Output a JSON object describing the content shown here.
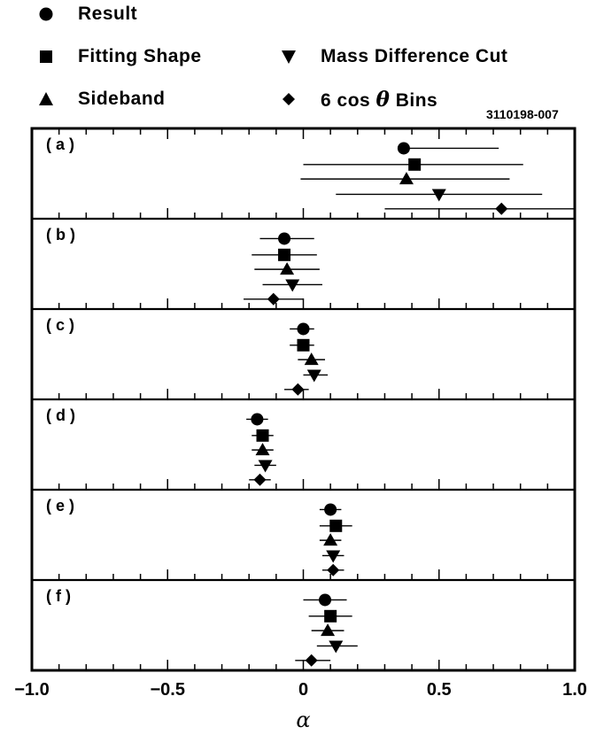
{
  "legend": {
    "items": [
      {
        "key": "result",
        "label": "Result",
        "symbol": "circle-icon"
      },
      {
        "key": "fitting",
        "label": "Fitting  Shape",
        "symbol": "square-icon"
      },
      {
        "key": "sideband",
        "label": "Sideband",
        "symbol": "triangle-up-icon"
      },
      {
        "key": "mass",
        "label": "Mass  Difference  Cut",
        "symbol": "triangle-down-icon"
      },
      {
        "key": "cos",
        "label": "6  cos",
        "label_theta": "θ",
        "label_after": " Bins",
        "symbol": "diamond-icon"
      }
    ]
  },
  "figure_code": "3110198-007",
  "chart_data": {
    "type": "scatter",
    "xlabel": "α",
    "xlim": [
      -1.0,
      1.0
    ],
    "x_tick_labels": [
      "−1.0",
      "−0.5",
      "0",
      "0.5",
      "1.0"
    ],
    "x_ticks": [
      -1.0,
      -0.5,
      0,
      0.5,
      1.0
    ],
    "series_order": [
      "result",
      "fitting",
      "sideband",
      "mass",
      "cos"
    ],
    "panels": [
      {
        "label": "( a )",
        "points": [
          {
            "series": "result",
            "x": 0.37,
            "xerr_low": 0.35,
            "xerr_high": 0.72
          },
          {
            "series": "fitting",
            "x": 0.41,
            "xerr_low": 0.0,
            "xerr_high": 0.81
          },
          {
            "series": "sideband",
            "x": 0.38,
            "xerr_low": -0.01,
            "xerr_high": 0.76
          },
          {
            "series": "mass",
            "x": 0.5,
            "xerr_low": 0.12,
            "xerr_high": 0.88
          },
          {
            "series": "cos",
            "x": 0.73,
            "xerr_low": 0.3,
            "xerr_high": 1.0
          }
        ]
      },
      {
        "label": "( b )",
        "points": [
          {
            "series": "result",
            "x": -0.07,
            "xerr_low": -0.16,
            "xerr_high": 0.04
          },
          {
            "series": "fitting",
            "x": -0.07,
            "xerr_low": -0.19,
            "xerr_high": 0.05
          },
          {
            "series": "sideband",
            "x": -0.06,
            "xerr_low": -0.18,
            "xerr_high": 0.06
          },
          {
            "series": "mass",
            "x": -0.04,
            "xerr_low": -0.15,
            "xerr_high": 0.07
          },
          {
            "series": "cos",
            "x": -0.11,
            "xerr_low": -0.22,
            "xerr_high": 0.0
          }
        ]
      },
      {
        "label": "( c )",
        "points": [
          {
            "series": "result",
            "x": 0.0,
            "xerr_low": -0.05,
            "xerr_high": 0.04
          },
          {
            "series": "fitting",
            "x": 0.0,
            "xerr_low": -0.05,
            "xerr_high": 0.04
          },
          {
            "series": "sideband",
            "x": 0.03,
            "xerr_low": -0.02,
            "xerr_high": 0.08
          },
          {
            "series": "mass",
            "x": 0.04,
            "xerr_low": 0.0,
            "xerr_high": 0.09
          },
          {
            "series": "cos",
            "x": -0.02,
            "xerr_low": -0.07,
            "xerr_high": 0.02
          }
        ]
      },
      {
        "label": "( d )",
        "points": [
          {
            "series": "result",
            "x": -0.17,
            "xerr_low": -0.21,
            "xerr_high": -0.13
          },
          {
            "series": "fitting",
            "x": -0.15,
            "xerr_low": -0.19,
            "xerr_high": -0.11
          },
          {
            "series": "sideband",
            "x": -0.15,
            "xerr_low": -0.19,
            "xerr_high": -0.11
          },
          {
            "series": "mass",
            "x": -0.14,
            "xerr_low": -0.18,
            "xerr_high": -0.1
          },
          {
            "series": "cos",
            "x": -0.16,
            "xerr_low": -0.2,
            "xerr_high": -0.12
          }
        ]
      },
      {
        "label": "( e )",
        "points": [
          {
            "series": "result",
            "x": 0.1,
            "xerr_low": 0.06,
            "xerr_high": 0.14
          },
          {
            "series": "fitting",
            "x": 0.12,
            "xerr_low": 0.06,
            "xerr_high": 0.18
          },
          {
            "series": "sideband",
            "x": 0.1,
            "xerr_low": 0.06,
            "xerr_high": 0.14
          },
          {
            "series": "mass",
            "x": 0.11,
            "xerr_low": 0.07,
            "xerr_high": 0.15
          },
          {
            "series": "cos",
            "x": 0.11,
            "xerr_low": 0.07,
            "xerr_high": 0.15
          }
        ]
      },
      {
        "label": "( f )",
        "points": [
          {
            "series": "result",
            "x": 0.08,
            "xerr_low": 0.0,
            "xerr_high": 0.16
          },
          {
            "series": "fitting",
            "x": 0.1,
            "xerr_low": 0.02,
            "xerr_high": 0.18
          },
          {
            "series": "sideband",
            "x": 0.09,
            "xerr_low": 0.03,
            "xerr_high": 0.15
          },
          {
            "series": "mass",
            "x": 0.12,
            "xerr_low": 0.05,
            "xerr_high": 0.2
          },
          {
            "series": "cos",
            "x": 0.03,
            "xerr_low": -0.03,
            "xerr_high": 0.1
          }
        ]
      }
    ]
  }
}
